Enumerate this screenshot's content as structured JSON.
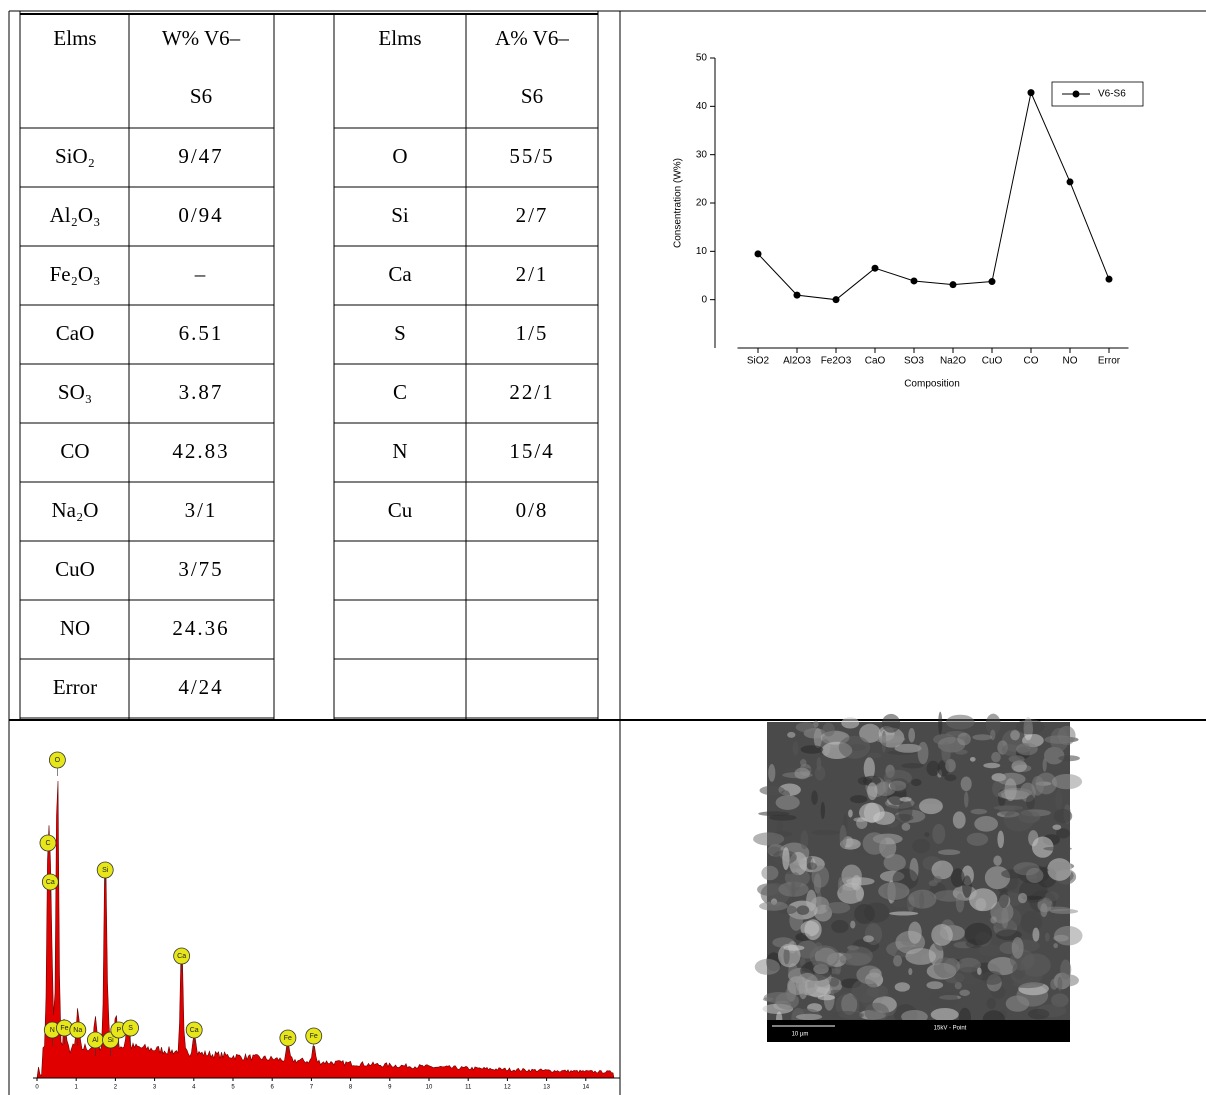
{
  "tables": {
    "weight": {
      "header": [
        "Elms",
        [
          "W% V6–",
          "S6"
        ]
      ],
      "rows": [
        [
          "SiO₂",
          "9/47"
        ],
        [
          "Al₂O₃",
          "0/94"
        ],
        [
          "Fe₂O₃",
          "–"
        ],
        [
          "CaO",
          "6.51"
        ],
        [
          "SO₃",
          "3.87"
        ],
        [
          "CO",
          "42.83"
        ],
        [
          "Na₂O",
          "3/1"
        ],
        [
          "CuO",
          "3/75"
        ],
        [
          "NO",
          "24.36"
        ],
        [
          "Error",
          "4/24"
        ]
      ]
    },
    "atomic": {
      "header": [
        "Elms",
        [
          "A% V6–",
          "S6"
        ]
      ],
      "rows": [
        [
          "O",
          "55/5"
        ],
        [
          "Si",
          "2/7"
        ],
        [
          "Ca",
          "2/1"
        ],
        [
          "S",
          "1/5"
        ],
        [
          "C",
          "22/1"
        ],
        [
          "N",
          "15/4"
        ],
        [
          "Cu",
          "0/8"
        ]
      ]
    }
  },
  "chart_data": {
    "type": "line",
    "x_label": "Composition",
    "y_label": "Consentration (W%)",
    "categories": [
      "SiO2",
      "Al2O3",
      "Fe2O3",
      "CaO",
      "SO3",
      "Na2O",
      "CuO",
      "CO",
      "NO",
      "Error"
    ],
    "series": [
      {
        "name": "V6-S6",
        "color": "#000000",
        "values": [
          9.47,
          0.94,
          0,
          6.51,
          3.87,
          3.1,
          3.75,
          42.83,
          24.36,
          4.24
        ]
      }
    ],
    "ylim": [
      -10,
      50
    ],
    "yticks": [
      0,
      10,
      20,
      30,
      40,
      50
    ],
    "grid": false,
    "legend": "upper right"
  },
  "spectrum": {
    "xticks": [
      0,
      1,
      2,
      3,
      4,
      5,
      6,
      7,
      8,
      9,
      10,
      11,
      12,
      13,
      14
    ],
    "peaks": [
      {
        "label": "O",
        "kev": 0.52
      },
      {
        "label": "C",
        "kev": 0.28
      },
      {
        "label": "Ca",
        "kev": 0.34
      },
      {
        "label": "Si",
        "kev": 1.74
      },
      {
        "label": "Ca",
        "kev": 3.69
      },
      {
        "label": "N",
        "kev": 0.39
      },
      {
        "label": "Fe",
        "kev": 0.7
      },
      {
        "label": "Na",
        "kev": 1.04
      },
      {
        "label": "Al",
        "kev": 1.49
      },
      {
        "label": "Si",
        "kev": 1.8
      },
      {
        "label": "P",
        "kev": 2.01
      },
      {
        "label": "S",
        "kev": 2.31
      },
      {
        "label": "Ca",
        "kev": 4.01
      },
      {
        "label": "Fe",
        "kev": 6.4
      },
      {
        "label": "Fe",
        "kev": 7.06
      }
    ]
  },
  "sem": {
    "scale_label": "10 µm",
    "mode_label": "15kV - Point"
  }
}
